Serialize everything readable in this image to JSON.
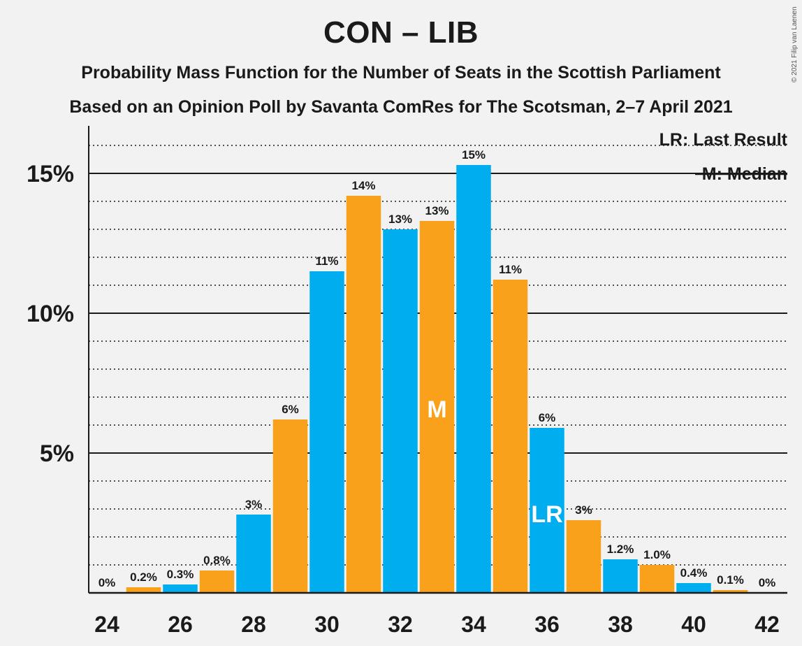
{
  "title": "CON – LIB",
  "subtitle_1": "Probability Mass Function for the Number of Seats in the Scottish Parliament",
  "subtitle_2": "Based on an Opinion Poll by Savanta ComRes for The Scotsman, 2–7 April 2021",
  "copyright": "© 2021 Filip van Laenen",
  "legend": {
    "last_result": "LR: Last Result",
    "median": "M: Median"
  },
  "colors": {
    "blue": "#00aeef",
    "orange": "#f9a11b",
    "background": "#f2f2f2",
    "text": "#1a1a1a"
  },
  "chart_data": {
    "type": "bar",
    "x": [
      24,
      25,
      26,
      27,
      28,
      29,
      30,
      31,
      32,
      33,
      34,
      35,
      36,
      37,
      38,
      39,
      40,
      41,
      42
    ],
    "values": [
      0,
      0.2,
      0.3,
      0.8,
      2.8,
      6.2,
      11.5,
      14.2,
      13.0,
      13.3,
      15.3,
      11.2,
      5.9,
      2.6,
      1.2,
      1.0,
      0.35,
      0.1,
      0
    ],
    "labels": [
      "0%",
      "0.2%",
      "0.3%",
      "0.8%",
      "3%",
      "6%",
      "11%",
      "14%",
      "13%",
      "13%",
      "15%",
      "11%",
      "6%",
      "3%",
      "1.2%",
      "1.0%",
      "0.4%",
      "0.1%",
      "0%"
    ],
    "x_tick_labels": [
      "24",
      "26",
      "28",
      "30",
      "32",
      "34",
      "36",
      "38",
      "40",
      "42"
    ],
    "y_tick_labels": [
      "5%",
      "10%",
      "15%"
    ],
    "y_ticks": [
      5,
      10,
      15
    ],
    "ylim": [
      0,
      16.7
    ],
    "median": 33,
    "median_mark": "M",
    "last_result": 36,
    "last_result_mark": "LR",
    "grid": true,
    "legend_position": "top-right"
  }
}
